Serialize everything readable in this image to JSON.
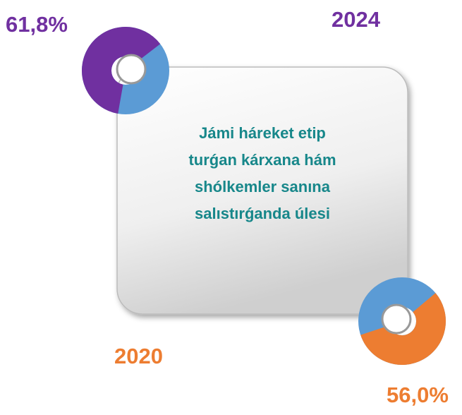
{
  "text": [
    "Jámi háreket etip",
    "turǵan kárxana hám",
    "shólkemler sanına",
    "salıstırǵanda úlesi"
  ],
  "chart_data": [
    {
      "type": "donut",
      "title": "2024",
      "values": [
        61.8
      ],
      "value_labels": [
        "61,8%"
      ],
      "color": "#7030a0",
      "rest_color": "#5b9bd5",
      "ylim": [
        0,
        100
      ]
    },
    {
      "type": "donut",
      "title": "2020",
      "values": [
        56.0
      ],
      "value_labels": [
        "56,0%"
      ],
      "color": "#ed7d31",
      "rest_color": "#5b9bd5",
      "ylim": [
        0,
        100
      ]
    }
  ]
}
